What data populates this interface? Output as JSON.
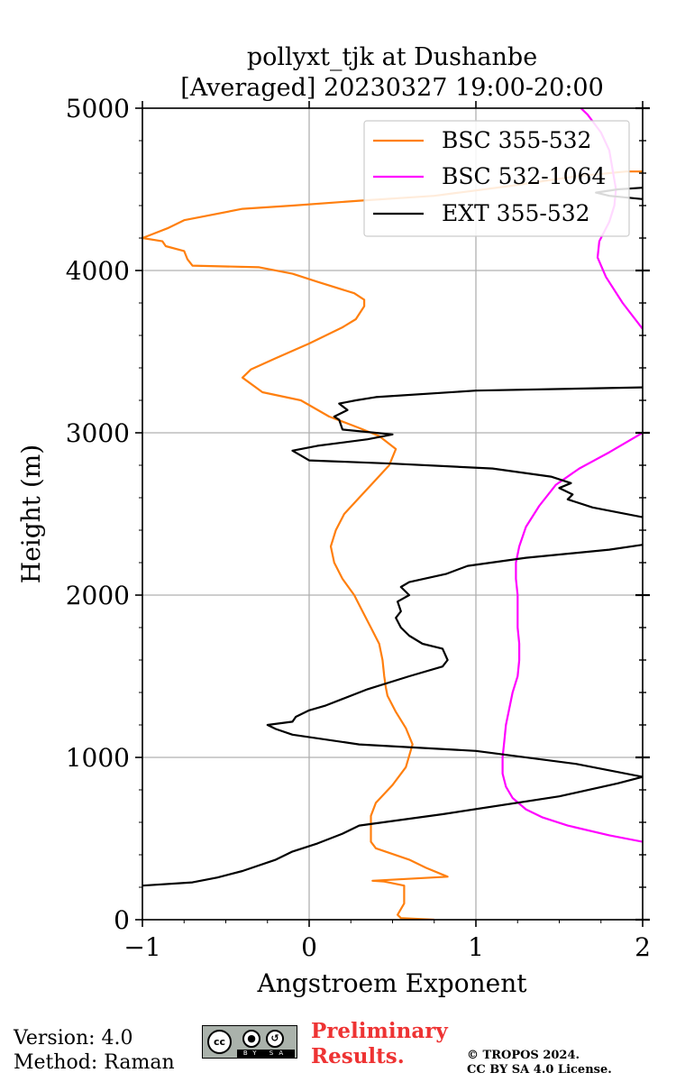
{
  "chart_data": {
    "type": "line",
    "title_line1": "pollyxt_tjk at Dushanbe",
    "title_line2": "[Averaged] 20230327 19:00-20:00",
    "xlabel": "Angstroem Exponent",
    "ylabel": "Height (m)",
    "xlim": [
      -1,
      2
    ],
    "ylim": [
      0,
      5000
    ],
    "xticks": [
      -1,
      0,
      1,
      2
    ],
    "xtick_labels": [
      "−1",
      "0",
      "1",
      "2"
    ],
    "yticks": [
      0,
      1000,
      2000,
      3000,
      4000,
      5000
    ],
    "ytick_labels": [
      "0",
      "1000",
      "2000",
      "3000",
      "4000",
      "5000"
    ],
    "grid": true,
    "legend_position": "top-right",
    "series": [
      {
        "name": "BSC 355-532",
        "color": "#ff7f0e",
        "points": [
          [
            0.75,
            0
          ],
          [
            0.55,
            10
          ],
          [
            0.53,
            30
          ],
          [
            0.57,
            100
          ],
          [
            0.57,
            210
          ],
          [
            0.45,
            235
          ],
          [
            0.38,
            240
          ],
          [
            0.83,
            265
          ],
          [
            0.7,
            320
          ],
          [
            0.6,
            370
          ],
          [
            0.4,
            440
          ],
          [
            0.37,
            480
          ],
          [
            0.37,
            640
          ],
          [
            0.4,
            720
          ],
          [
            0.5,
            830
          ],
          [
            0.58,
            940
          ],
          [
            0.62,
            1080
          ],
          [
            0.58,
            1180
          ],
          [
            0.52,
            1280
          ],
          [
            0.47,
            1380
          ],
          [
            0.46,
            1430
          ],
          [
            0.45,
            1500
          ],
          [
            0.44,
            1600
          ],
          [
            0.42,
            1700
          ],
          [
            0.37,
            1800
          ],
          [
            0.32,
            1900
          ],
          [
            0.27,
            2000
          ],
          [
            0.2,
            2100
          ],
          [
            0.15,
            2200
          ],
          [
            0.13,
            2300
          ],
          [
            0.16,
            2400
          ],
          [
            0.21,
            2500
          ],
          [
            0.3,
            2600
          ],
          [
            0.39,
            2700
          ],
          [
            0.48,
            2800
          ],
          [
            0.52,
            2900
          ],
          [
            0.42,
            2980
          ],
          [
            0.3,
            3030
          ],
          [
            0.12,
            3100
          ],
          [
            -0.05,
            3200
          ],
          [
            -0.28,
            3250
          ],
          [
            -0.4,
            3340
          ],
          [
            -0.35,
            3390
          ],
          [
            -0.2,
            3460
          ],
          [
            0,
            3550
          ],
          [
            0.1,
            3600
          ],
          [
            0.2,
            3650
          ],
          [
            0.28,
            3700
          ],
          [
            0.33,
            3780
          ],
          [
            0.33,
            3820
          ],
          [
            0.27,
            3860
          ],
          [
            0.05,
            3930
          ],
          [
            -0.1,
            3980
          ],
          [
            -0.3,
            4020
          ],
          [
            -0.7,
            4030
          ],
          [
            -0.73,
            4070
          ],
          [
            -0.75,
            4120
          ],
          [
            -0.86,
            4150
          ],
          [
            -0.88,
            4180
          ],
          [
            -1.0,
            4200
          ],
          [
            -0.85,
            4260
          ],
          [
            -0.75,
            4310
          ],
          [
            -0.4,
            4380
          ],
          [
            -0.1,
            4400
          ],
          [
            0.3,
            4430
          ],
          [
            0.75,
            4460
          ],
          [
            1.2,
            4520
          ],
          [
            1.6,
            4580
          ],
          [
            1.9,
            4610
          ],
          [
            2.0,
            4610
          ]
        ]
      },
      {
        "name": "BSC 532-1064",
        "color": "#ff00ff",
        "points": [
          [
            2.0,
            480
          ],
          [
            1.8,
            520
          ],
          [
            1.55,
            580
          ],
          [
            1.4,
            630
          ],
          [
            1.3,
            680
          ],
          [
            1.22,
            750
          ],
          [
            1.18,
            820
          ],
          [
            1.16,
            900
          ],
          [
            1.16,
            1000
          ],
          [
            1.17,
            1100
          ],
          [
            1.18,
            1200
          ],
          [
            1.2,
            1300
          ],
          [
            1.22,
            1400
          ],
          [
            1.25,
            1500
          ],
          [
            1.26,
            1600
          ],
          [
            1.26,
            1700
          ],
          [
            1.25,
            1800
          ],
          [
            1.25,
            1900
          ],
          [
            1.25,
            2000
          ],
          [
            1.24,
            2100
          ],
          [
            1.24,
            2200
          ],
          [
            1.26,
            2300
          ],
          [
            1.3,
            2420
          ],
          [
            1.38,
            2550
          ],
          [
            1.48,
            2680
          ],
          [
            1.62,
            2780
          ],
          [
            1.8,
            2880
          ],
          [
            2.0,
            3000
          ]
        ]
      },
      {
        "name": "BSC 532-1064",
        "color": "#ff00ff",
        "points": [
          [
            2.0,
            3640
          ],
          [
            1.88,
            3800
          ],
          [
            1.78,
            3960
          ],
          [
            1.73,
            4080
          ],
          [
            1.74,
            4180
          ],
          [
            1.8,
            4300
          ],
          [
            1.83,
            4400
          ],
          [
            1.84,
            4500
          ],
          [
            1.82,
            4620
          ],
          [
            1.8,
            4740
          ],
          [
            1.75,
            4850
          ],
          [
            1.67,
            4960
          ],
          [
            1.63,
            5000
          ]
        ]
      },
      {
        "name": "EXT 355-532",
        "color": "#000000",
        "points": [
          [
            -1.0,
            210
          ],
          [
            -0.7,
            230
          ],
          [
            -0.55,
            260
          ],
          [
            -0.4,
            300
          ],
          [
            -0.2,
            370
          ],
          [
            -0.1,
            420
          ],
          [
            0.05,
            470
          ],
          [
            0.2,
            530
          ],
          [
            0.3,
            580
          ],
          [
            0.8,
            650
          ],
          [
            1.5,
            760
          ],
          [
            1.85,
            840
          ],
          [
            2.0,
            880
          ],
          [
            1.6,
            960
          ],
          [
            1.0,
            1040
          ],
          [
            0.3,
            1080
          ],
          [
            -0.1,
            1140
          ],
          [
            -0.2,
            1175
          ],
          [
            -0.25,
            1200
          ],
          [
            -0.1,
            1220
          ],
          [
            -0.08,
            1250
          ],
          [
            0.0,
            1290
          ],
          [
            0.1,
            1320
          ],
          [
            0.2,
            1360
          ],
          [
            0.35,
            1420
          ],
          [
            0.6,
            1500
          ],
          [
            0.8,
            1560
          ],
          [
            0.83,
            1600
          ],
          [
            0.8,
            1670
          ],
          [
            0.68,
            1700
          ],
          [
            0.6,
            1750
          ],
          [
            0.55,
            1800
          ],
          [
            0.52,
            1860
          ],
          [
            0.55,
            1900
          ],
          [
            0.53,
            1960
          ],
          [
            0.6,
            2000
          ],
          [
            0.55,
            2050
          ],
          [
            0.6,
            2080
          ],
          [
            0.82,
            2130
          ],
          [
            0.95,
            2180
          ],
          [
            1.3,
            2230
          ],
          [
            1.8,
            2280
          ],
          [
            2.0,
            2310
          ]
        ]
      },
      {
        "name": "EXT 355-532",
        "color": "#000000",
        "points": [
          [
            2.0,
            2480
          ],
          [
            1.7,
            2540
          ],
          [
            1.55,
            2590
          ],
          [
            1.58,
            2620
          ],
          [
            1.5,
            2660
          ],
          [
            1.57,
            2690
          ],
          [
            1.45,
            2730
          ],
          [
            1.1,
            2780
          ],
          [
            0.5,
            2810
          ],
          [
            0.0,
            2830
          ],
          [
            -0.05,
            2860
          ],
          [
            -0.1,
            2890
          ],
          [
            0.05,
            2920
          ],
          [
            0.35,
            2960
          ],
          [
            0.5,
            2990
          ],
          [
            0.2,
            3020
          ],
          [
            0.18,
            3080
          ],
          [
            0.15,
            3100
          ],
          [
            0.23,
            3140
          ],
          [
            0.18,
            3180
          ],
          [
            0.28,
            3200
          ],
          [
            0.4,
            3220
          ],
          [
            1.0,
            3260
          ],
          [
            2.0,
            3280
          ]
        ]
      },
      {
        "name": "EXT 355-532",
        "color": "#000000",
        "points": [
          [
            2.0,
            4440
          ],
          [
            1.8,
            4460
          ],
          [
            1.72,
            4480
          ],
          [
            1.85,
            4500
          ],
          [
            2.0,
            4510
          ]
        ]
      }
    ],
    "legend": [
      {
        "label": "BSC 355-532",
        "color": "#ff7f0e"
      },
      {
        "label": "BSC 532-1064",
        "color": "#ff00ff"
      },
      {
        "label": "EXT 355-532",
        "color": "#000000"
      }
    ]
  },
  "footer": {
    "version": "Version: 4.0",
    "method": "Method: Raman",
    "license_badge": {
      "main": "cc",
      "by": "BY",
      "sa": "SA"
    },
    "preliminary_line1": "Preliminary",
    "preliminary_line2": "Results.",
    "copyright_line1": "© TROPOS 2024.",
    "copyright_line2": "CC BY SA 4.0 License."
  }
}
